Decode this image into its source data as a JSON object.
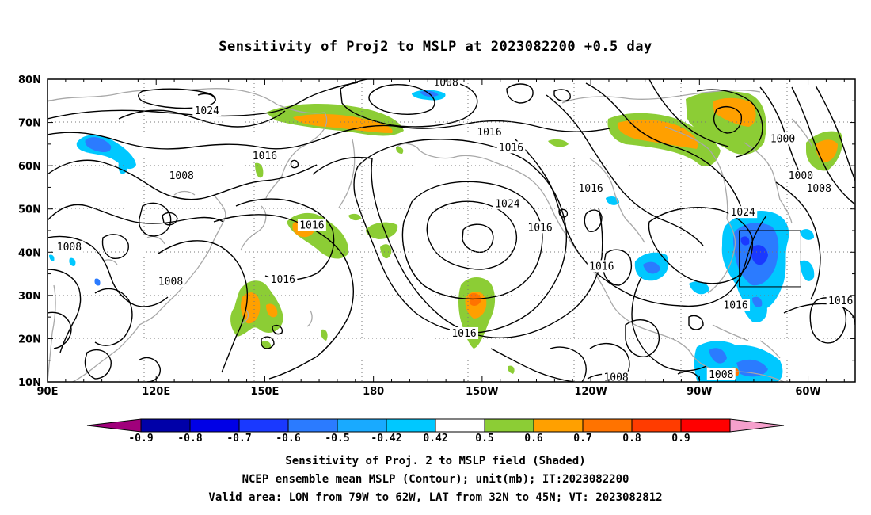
{
  "title": "Sensitivity of Proj2 to MSLP at 2023082200 +0.5 day",
  "map": {
    "lon_labels": [
      "90E",
      "120E",
      "150E",
      "180",
      "150W",
      "120W",
      "90W",
      "60W"
    ],
    "lon_values": [
      90,
      120,
      150,
      180,
      210,
      240,
      270,
      300
    ],
    "lat_labels": [
      "10N",
      "20N",
      "30N",
      "40N",
      "50N",
      "60N",
      "70N",
      "80N"
    ],
    "lat_values": [
      10,
      20,
      30,
      40,
      50,
      60,
      70,
      80
    ],
    "lon_range": [
      90,
      313
    ],
    "lat_range": [
      10,
      80
    ],
    "grid": "dotted",
    "contour_labels": [
      {
        "text": "1008",
        "lon": 200,
        "lat": 79
      },
      {
        "text": "1024",
        "lon": 134,
        "lat": 72.5
      },
      {
        "text": "1016",
        "lon": 212,
        "lat": 67.5
      },
      {
        "text": "1016",
        "lon": 218,
        "lat": 64
      },
      {
        "text": "1016",
        "lon": 150,
        "lat": 62
      },
      {
        "text": "1000",
        "lon": 293,
        "lat": 66
      },
      {
        "text": "1008",
        "lon": 127,
        "lat": 57.5
      },
      {
        "text": "1016",
        "lon": 240,
        "lat": 54.5
      },
      {
        "text": "1000",
        "lon": 298,
        "lat": 57.5
      },
      {
        "text": "1008",
        "lon": 303,
        "lat": 54.5
      },
      {
        "text": "1024",
        "lon": 217,
        "lat": 51
      },
      {
        "text": "1024",
        "lon": 282,
        "lat": 49
      },
      {
        "text": "1016",
        "lon": 163,
        "lat": 46
      },
      {
        "text": "1016",
        "lon": 226,
        "lat": 45.5
      },
      {
        "text": "1008",
        "lon": 96,
        "lat": 41
      },
      {
        "text": "1016",
        "lon": 243,
        "lat": 36.5
      },
      {
        "text": "1008",
        "lon": 124,
        "lat": 33
      },
      {
        "text": "1016",
        "lon": 155,
        "lat": 33.5
      },
      {
        "text": "1016",
        "lon": 280,
        "lat": 27.5
      },
      {
        "text": "1016",
        "lon": 309,
        "lat": 28.5
      },
      {
        "text": "1016",
        "lon": 205,
        "lat": 21
      },
      {
        "text": "1008",
        "lon": 247,
        "lat": 10.8
      },
      {
        "text": "1008",
        "lon": 276,
        "lat": 11.5
      }
    ],
    "valid_box": {
      "lon": [
        281,
        298
      ],
      "lat": [
        32,
        45
      ]
    }
  },
  "colorbar": {
    "labels": [
      "-0.9",
      "-0.8",
      "-0.7",
      "-0.6",
      "-0.5",
      "-0.42",
      "0.42",
      "0.5",
      "0.6",
      "0.7",
      "0.8",
      "0.9"
    ],
    "colors": [
      "#a0007b",
      "#0000a8",
      "#0000e6",
      "#1a39ff",
      "#2b7bff",
      "#19aaff",
      "#00c8ff",
      "#ffffff",
      "#8ccd35",
      "#ffa000",
      "#ff7300",
      "#ff3c00",
      "#ff0000",
      "#f5a0cc"
    ]
  },
  "captions": [
    "Sensitivity of Proj. 2 to MSLP field (Shaded)",
    "NCEP ensemble mean MSLP (Contour); unit(mb); IT:2023082200",
    "Valid area: LON from 79W to 62W, LAT from 32N to 45N; VT: 2023082812"
  ]
}
